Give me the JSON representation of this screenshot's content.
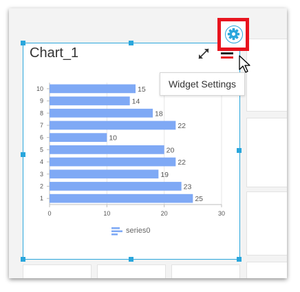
{
  "widget": {
    "title": "Chart_1",
    "tooltip": "Widget Settings"
  },
  "chart_data": {
    "type": "bar",
    "orientation": "horizontal",
    "categories": [
      "1",
      "2",
      "3",
      "4",
      "5",
      "6",
      "7",
      "8",
      "9",
      "10"
    ],
    "series": [
      {
        "name": "series0",
        "values": [
          25,
          23,
          19,
          22,
          20,
          10,
          22,
          18,
          14,
          15
        ],
        "color": "#7fa9f5"
      }
    ],
    "xlim": [
      0,
      30
    ],
    "xticks": [
      0,
      10,
      20,
      30
    ],
    "data_labels": true,
    "grid": true,
    "legend": "bottom"
  },
  "colors": {
    "selection": "#29a6dc",
    "highlight": "#e8141e",
    "bar": "#7fa9f5"
  },
  "icons": [
    "expand-icon",
    "menu-icon",
    "gear-icon",
    "cursor-icon",
    "legend-bar-icon"
  ]
}
